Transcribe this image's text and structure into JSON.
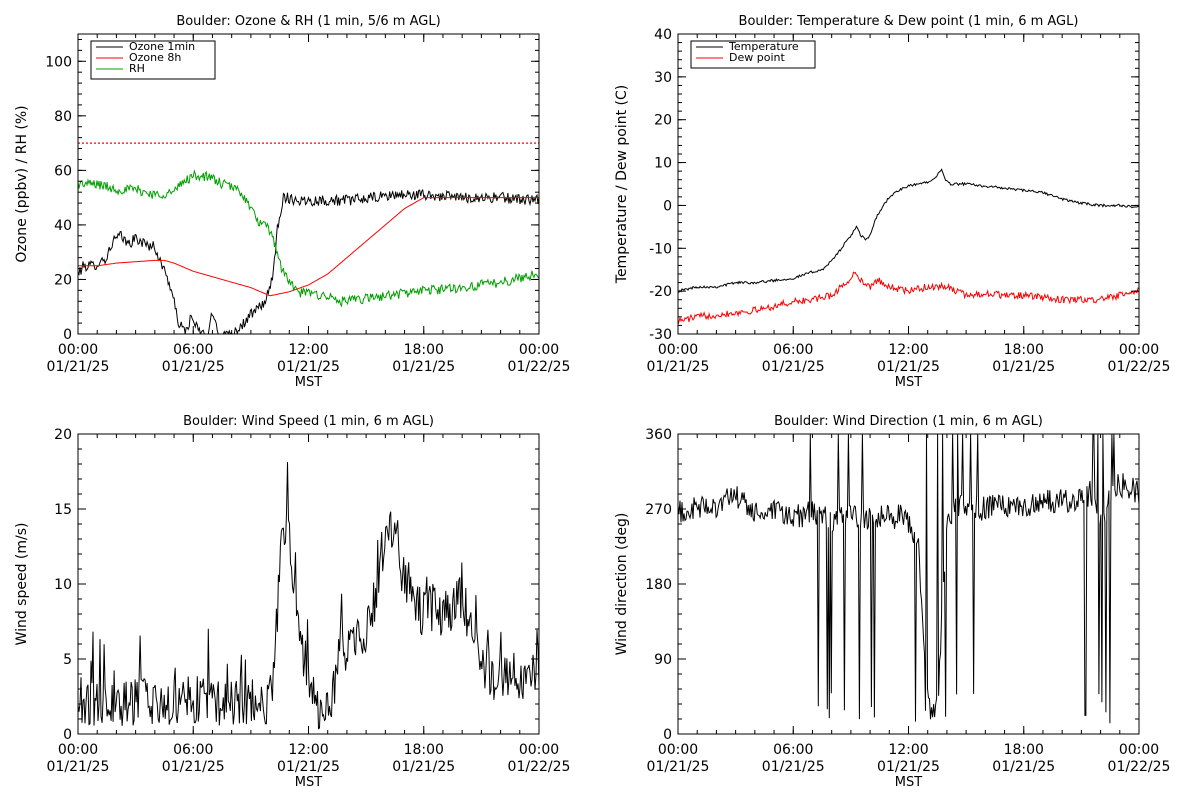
{
  "colors": {
    "axis": "#000000",
    "black": "#000000",
    "red": "#ff0000",
    "green": "#00a000"
  },
  "chart_data": [
    {
      "id": "ozone-rh",
      "type": "line",
      "title": "Boulder: Ozone & RH (1 min, 5/6 m AGL)",
      "xlabel": "MST",
      "ylabel": "Ozone (ppbv) / RH (%)",
      "xlim": [
        0,
        24
      ],
      "ylim": [
        0,
        110
      ],
      "yticks": [
        0,
        20,
        40,
        60,
        80,
        100
      ],
      "xticks": [
        {
          "x": 0,
          "time": "00:00",
          "date": "01/21/25"
        },
        {
          "x": 6,
          "time": "06:00",
          "date": "01/21/25"
        },
        {
          "x": 12,
          "time": "12:00",
          "date": "01/21/25"
        },
        {
          "x": 18,
          "time": "18:00",
          "date": "01/21/25"
        },
        {
          "x": 24,
          "time": "00:00",
          "date": "01/22/25"
        }
      ],
      "legend": {
        "position": "top-left",
        "entries": [
          {
            "label": "Ozone 1min",
            "color": "#000000"
          },
          {
            "label": "Ozone 8h",
            "color": "#ff0000"
          },
          {
            "label": "RH",
            "color": "#00a000"
          }
        ]
      },
      "reference_lines": [
        {
          "y": 70,
          "color": "#ff0000",
          "style": "dotted"
        }
      ],
      "series": [
        {
          "name": "Ozone 1min",
          "color": "#000000",
          "noise": 2,
          "x": [
            0,
            0.3,
            0.8,
            1.5,
            1.8,
            2.2,
            2.6,
            3.0,
            3.5,
            4.0,
            4.3,
            4.6,
            4.9,
            5.1,
            5.3,
            5.6,
            5.9,
            6.2,
            6.5,
            6.8,
            7.0,
            7.3,
            7.6,
            8.0,
            8.5,
            9.0,
            9.5,
            9.8,
            10.0,
            10.2,
            10.4,
            10.6,
            10.7,
            10.9,
            11.5,
            12.5,
            14.0,
            15.5,
            16.5,
            18.0,
            20.0,
            22.0,
            24.0
          ],
          "y": [
            22,
            25,
            25,
            28,
            34,
            36,
            33,
            35,
            33,
            32,
            26,
            22,
            15,
            8,
            3,
            1,
            6,
            2,
            0,
            0,
            8,
            1,
            0,
            0,
            3,
            7,
            10,
            13,
            16,
            25,
            40,
            47,
            50,
            50,
            49,
            49,
            49,
            50,
            51,
            51,
            50,
            50,
            49
          ]
        },
        {
          "name": "Ozone 8h",
          "color": "#ff0000",
          "noise": 0,
          "x": [
            0,
            1,
            2,
            3,
            4,
            4.5,
            5,
            6,
            7,
            8,
            9,
            10,
            11,
            12,
            13,
            14,
            15,
            16,
            17,
            18,
            19,
            20,
            21,
            22,
            23,
            24
          ],
          "y": [
            25,
            25,
            26,
            26.5,
            27,
            27,
            26,
            23,
            21,
            19,
            17,
            14,
            15.5,
            18,
            22,
            28,
            34,
            40,
            46,
            50,
            50,
            50,
            50,
            50,
            50,
            50
          ]
        },
        {
          "name": "RH",
          "color": "#00a000",
          "noise": 1.8,
          "x": [
            0,
            1,
            2,
            3,
            4,
            5,
            5.5,
            6,
            6.5,
            7,
            7.5,
            8,
            8.5,
            9,
            9.3,
            9.6,
            10.0,
            10.3,
            10.6,
            11.0,
            11.5,
            12.0,
            13.0,
            13.5,
            14.0,
            15.0,
            16.0,
            17.0,
            18.0,
            20.0,
            22.0,
            24.0
          ],
          "y": [
            55,
            55,
            53,
            53,
            51,
            52,
            56,
            58,
            58,
            57,
            55,
            54,
            52,
            46,
            42,
            40,
            38,
            32,
            24,
            19,
            15,
            15,
            14,
            12,
            12,
            13,
            14,
            15,
            16,
            17,
            19,
            22
          ]
        }
      ]
    },
    {
      "id": "temp-dew",
      "type": "line",
      "title": "Boulder: Temperature & Dew point (1 min, 6 m AGL)",
      "xlabel": "MST",
      "ylabel": "Temperature / Dew point (C)",
      "xlim": [
        0,
        24
      ],
      "ylim": [
        -30,
        40
      ],
      "yticks": [
        -30,
        -20,
        -10,
        0,
        10,
        20,
        30,
        40
      ],
      "xticks": [
        {
          "x": 0,
          "time": "00:00",
          "date": "01/21/25"
        },
        {
          "x": 6,
          "time": "06:00",
          "date": "01/21/25"
        },
        {
          "x": 12,
          "time": "12:00",
          "date": "01/21/25"
        },
        {
          "x": 18,
          "time": "18:00",
          "date": "01/21/25"
        },
        {
          "x": 24,
          "time": "00:00",
          "date": "01/22/25"
        }
      ],
      "legend": {
        "position": "top-left",
        "entries": [
          {
            "label": "Temperature",
            "color": "#000000"
          },
          {
            "label": "Dew point",
            "color": "#ff0000"
          }
        ]
      },
      "series": [
        {
          "name": "Temperature",
          "color": "#000000",
          "noise": 0.3,
          "x": [
            0,
            1,
            2,
            3,
            4,
            5,
            6,
            7,
            7.5,
            8,
            8.5,
            9,
            9.3,
            9.5,
            9.8,
            10.0,
            10.3,
            10.7,
            11.0,
            11.5,
            12.0,
            12.5,
            13.0,
            13.5,
            13.7,
            13.9,
            14.2,
            15.0,
            16.0,
            17.0,
            18.0,
            19.0,
            20.0,
            21.0,
            22.0,
            23.0,
            24.0
          ],
          "y": [
            -20,
            -19,
            -19,
            -18,
            -18,
            -17.5,
            -17,
            -15.5,
            -15,
            -13,
            -10,
            -7,
            -5,
            -7,
            -8,
            -7,
            -3,
            0,
            2,
            3.5,
            4.5,
            5,
            5.5,
            7,
            8.5,
            6,
            5,
            5,
            4.5,
            4,
            3.5,
            3,
            1.5,
            0.5,
            0,
            0,
            -0.5
          ]
        },
        {
          "name": "Dew point",
          "color": "#ff0000",
          "noise": 0.8,
          "x": [
            0,
            1,
            2,
            3,
            4,
            5,
            6,
            7,
            8,
            8.5,
            9.0,
            9.3,
            9.6,
            10.0,
            10.5,
            11.0,
            12.0,
            13.0,
            14.0,
            15.0,
            16.0,
            17.0,
            18.0,
            20.0,
            22.0,
            24.0
          ],
          "y": [
            -27,
            -26,
            -25.5,
            -25,
            -24.5,
            -23.5,
            -22.5,
            -22,
            -21,
            -19,
            -17,
            -15.5,
            -18,
            -19,
            -17.5,
            -19,
            -20,
            -19,
            -19,
            -21,
            -20.5,
            -21,
            -21,
            -22,
            -22,
            -20
          ]
        }
      ]
    },
    {
      "id": "wind-speed",
      "type": "line",
      "title": "Boulder: Wind Speed (1 min, 6 m AGL)",
      "xlabel": "MST",
      "ylabel": "Wind speed (m/s)",
      "xlim": [
        0,
        24
      ],
      "ylim": [
        0,
        20
      ],
      "yticks": [
        0,
        5,
        10,
        15,
        20
      ],
      "xticks": [
        {
          "x": 0,
          "time": "00:00",
          "date": "01/21/25"
        },
        {
          "x": 6,
          "time": "06:00",
          "date": "01/21/25"
        },
        {
          "x": 12,
          "time": "12:00",
          "date": "01/21/25"
        },
        {
          "x": 18,
          "time": "18:00",
          "date": "01/21/25"
        },
        {
          "x": 24,
          "time": "00:00",
          "date": "01/22/25"
        }
      ],
      "series": [
        {
          "name": "",
          "color": "#000000",
          "noise": 1.6,
          "x": [
            0,
            1,
            2,
            3,
            4,
            5,
            6,
            7,
            8,
            9,
            9.8,
            10.2,
            10.6,
            10.9,
            11.2,
            11.5,
            11.8,
            12.1,
            12.4,
            12.8,
            13.2,
            13.6,
            14.0,
            14.5,
            15.0,
            15.5,
            15.8,
            16.2,
            16.6,
            17.0,
            17.5,
            18.0,
            18.5,
            19.0,
            19.5,
            20.0,
            20.5,
            21.0,
            21.5,
            22.0,
            22.5,
            23.0,
            23.5,
            24.0
          ],
          "y": [
            2.2,
            2.1,
            2,
            2.2,
            2,
            2.1,
            2.3,
            2.2,
            2,
            2.3,
            2.2,
            4,
            13,
            15,
            10,
            7,
            5,
            3,
            2,
            1.5,
            2.5,
            5,
            6,
            6.5,
            7,
            9,
            12,
            14,
            13,
            10,
            9,
            8,
            8.5,
            8,
            8.5,
            9,
            7,
            5,
            4,
            3.5,
            4,
            3.5,
            4,
            4.5
          ]
        }
      ]
    },
    {
      "id": "wind-direction",
      "type": "line",
      "title": "Boulder: Wind Direction (1 min, 6 m AGL)",
      "xlabel": "MST",
      "ylabel": "Wind direction (deg)",
      "xlim": [
        0,
        24
      ],
      "ylim": [
        0,
        360
      ],
      "yticks": [
        0,
        90,
        180,
        270,
        360
      ],
      "xticks": [
        {
          "x": 0,
          "time": "00:00",
          "date": "01/21/25"
        },
        {
          "x": 6,
          "time": "06:00",
          "date": "01/21/25"
        },
        {
          "x": 12,
          "time": "12:00",
          "date": "01/21/25"
        },
        {
          "x": 18,
          "time": "18:00",
          "date": "01/21/25"
        },
        {
          "x": 24,
          "time": "00:00",
          "date": "01/22/25"
        }
      ],
      "series": [
        {
          "name": "",
          "color": "#000000",
          "noise": 15,
          "x": [
            0,
            1,
            2,
            3,
            4,
            5,
            6,
            7,
            8,
            9,
            10,
            10.5,
            11,
            11.5,
            12,
            12.5,
            13,
            13.5,
            14,
            15,
            16,
            17,
            18,
            19,
            20,
            21,
            21.5,
            22,
            22.5,
            23,
            24
          ],
          "y": [
            265,
            270,
            275,
            285,
            265,
            265,
            260,
            265,
            255,
            260,
            258,
            262,
            260,
            262,
            255,
            230,
            40,
            30,
            265,
            275,
            270,
            275,
            275,
            278,
            280,
            282,
            290,
            250,
            290,
            300,
            290
          ]
        }
      ]
    }
  ]
}
